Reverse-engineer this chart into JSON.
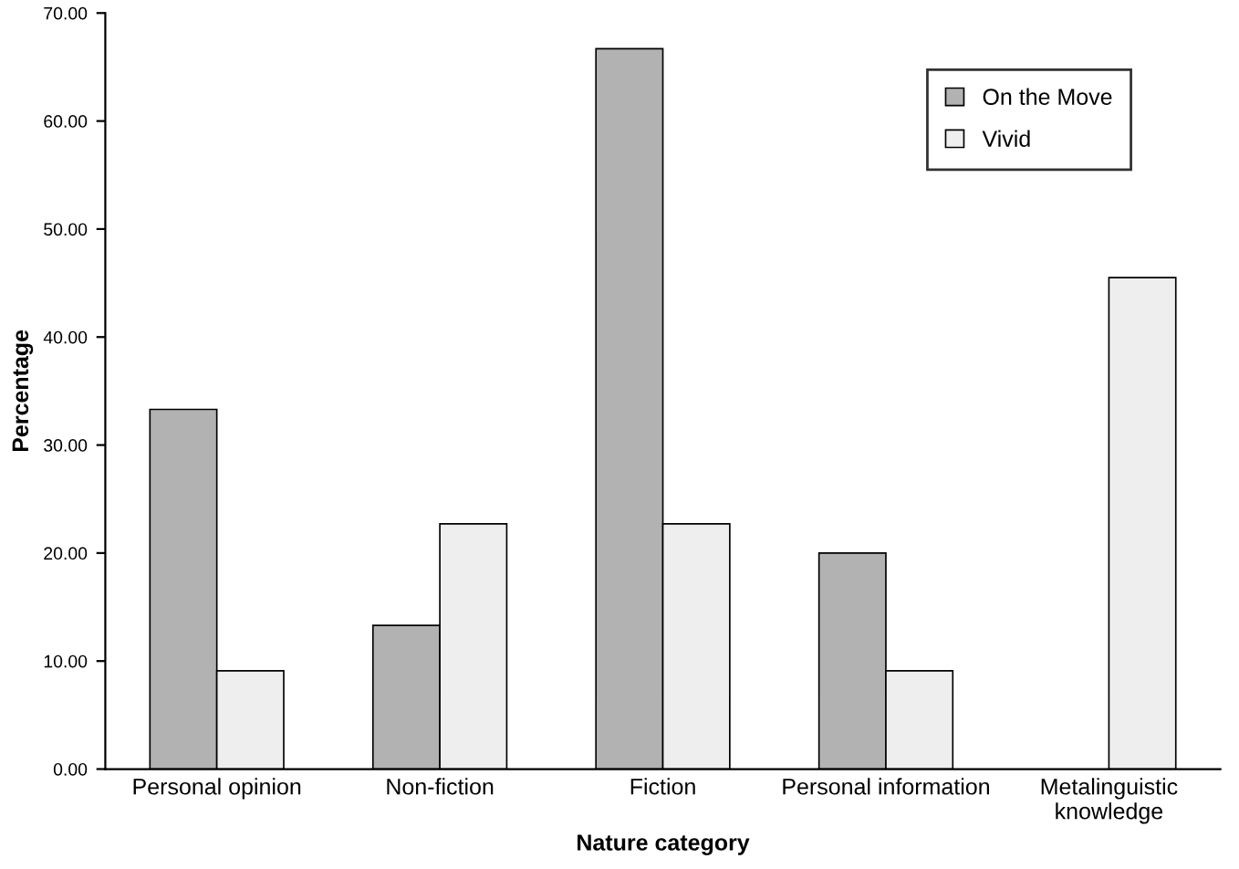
{
  "chart_data": {
    "type": "bar",
    "xlabel": "Nature category",
    "ylabel": "Percentage",
    "categories": [
      "Personal opinion",
      "Non-fiction",
      "Fiction",
      "Personal information",
      "Metalinguistic\nknowledge"
    ],
    "series": [
      {
        "name": "On the Move",
        "color": "#b2b2b2",
        "values": [
          33.3,
          13.3,
          66.7,
          20.0,
          0
        ]
      },
      {
        "name": "Vivid",
        "color": "#eeeeee",
        "values": [
          9.1,
          22.7,
          22.7,
          9.1,
          45.5
        ]
      }
    ],
    "ylim": [
      0,
      70
    ],
    "yticks": [
      {
        "value": 0,
        "label": "0.00"
      },
      {
        "value": 10,
        "label": "10.00"
      },
      {
        "value": 20,
        "label": "20.00"
      },
      {
        "value": 30,
        "label": "30.00"
      },
      {
        "value": 40,
        "label": "40.00"
      },
      {
        "value": 50,
        "label": "50.00"
      },
      {
        "value": 60,
        "label": "60.00"
      },
      {
        "value": 70,
        "label": "70.00"
      }
    ],
    "grid": false,
    "legend": "top right"
  }
}
